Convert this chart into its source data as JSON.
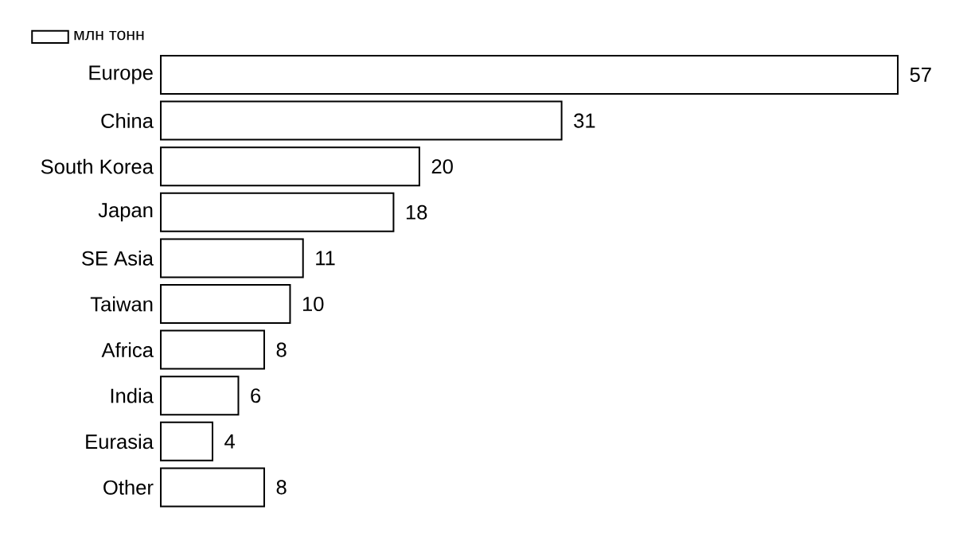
{
  "chart_data": {
    "type": "bar",
    "orientation": "horizontal",
    "categories": [
      "Europe",
      "China",
      "South Korea",
      "Japan",
      "SE Asia",
      "Taiwan",
      "Africa",
      "India",
      "Eurasia",
      "Other"
    ],
    "series": [
      {
        "name": "млн тонн",
        "color": "#ffffff",
        "values": [
          57,
          31,
          20,
          18,
          11,
          10,
          8,
          6,
          4,
          8
        ]
      }
    ],
    "data_labels": true,
    "legend": "top left"
  }
}
